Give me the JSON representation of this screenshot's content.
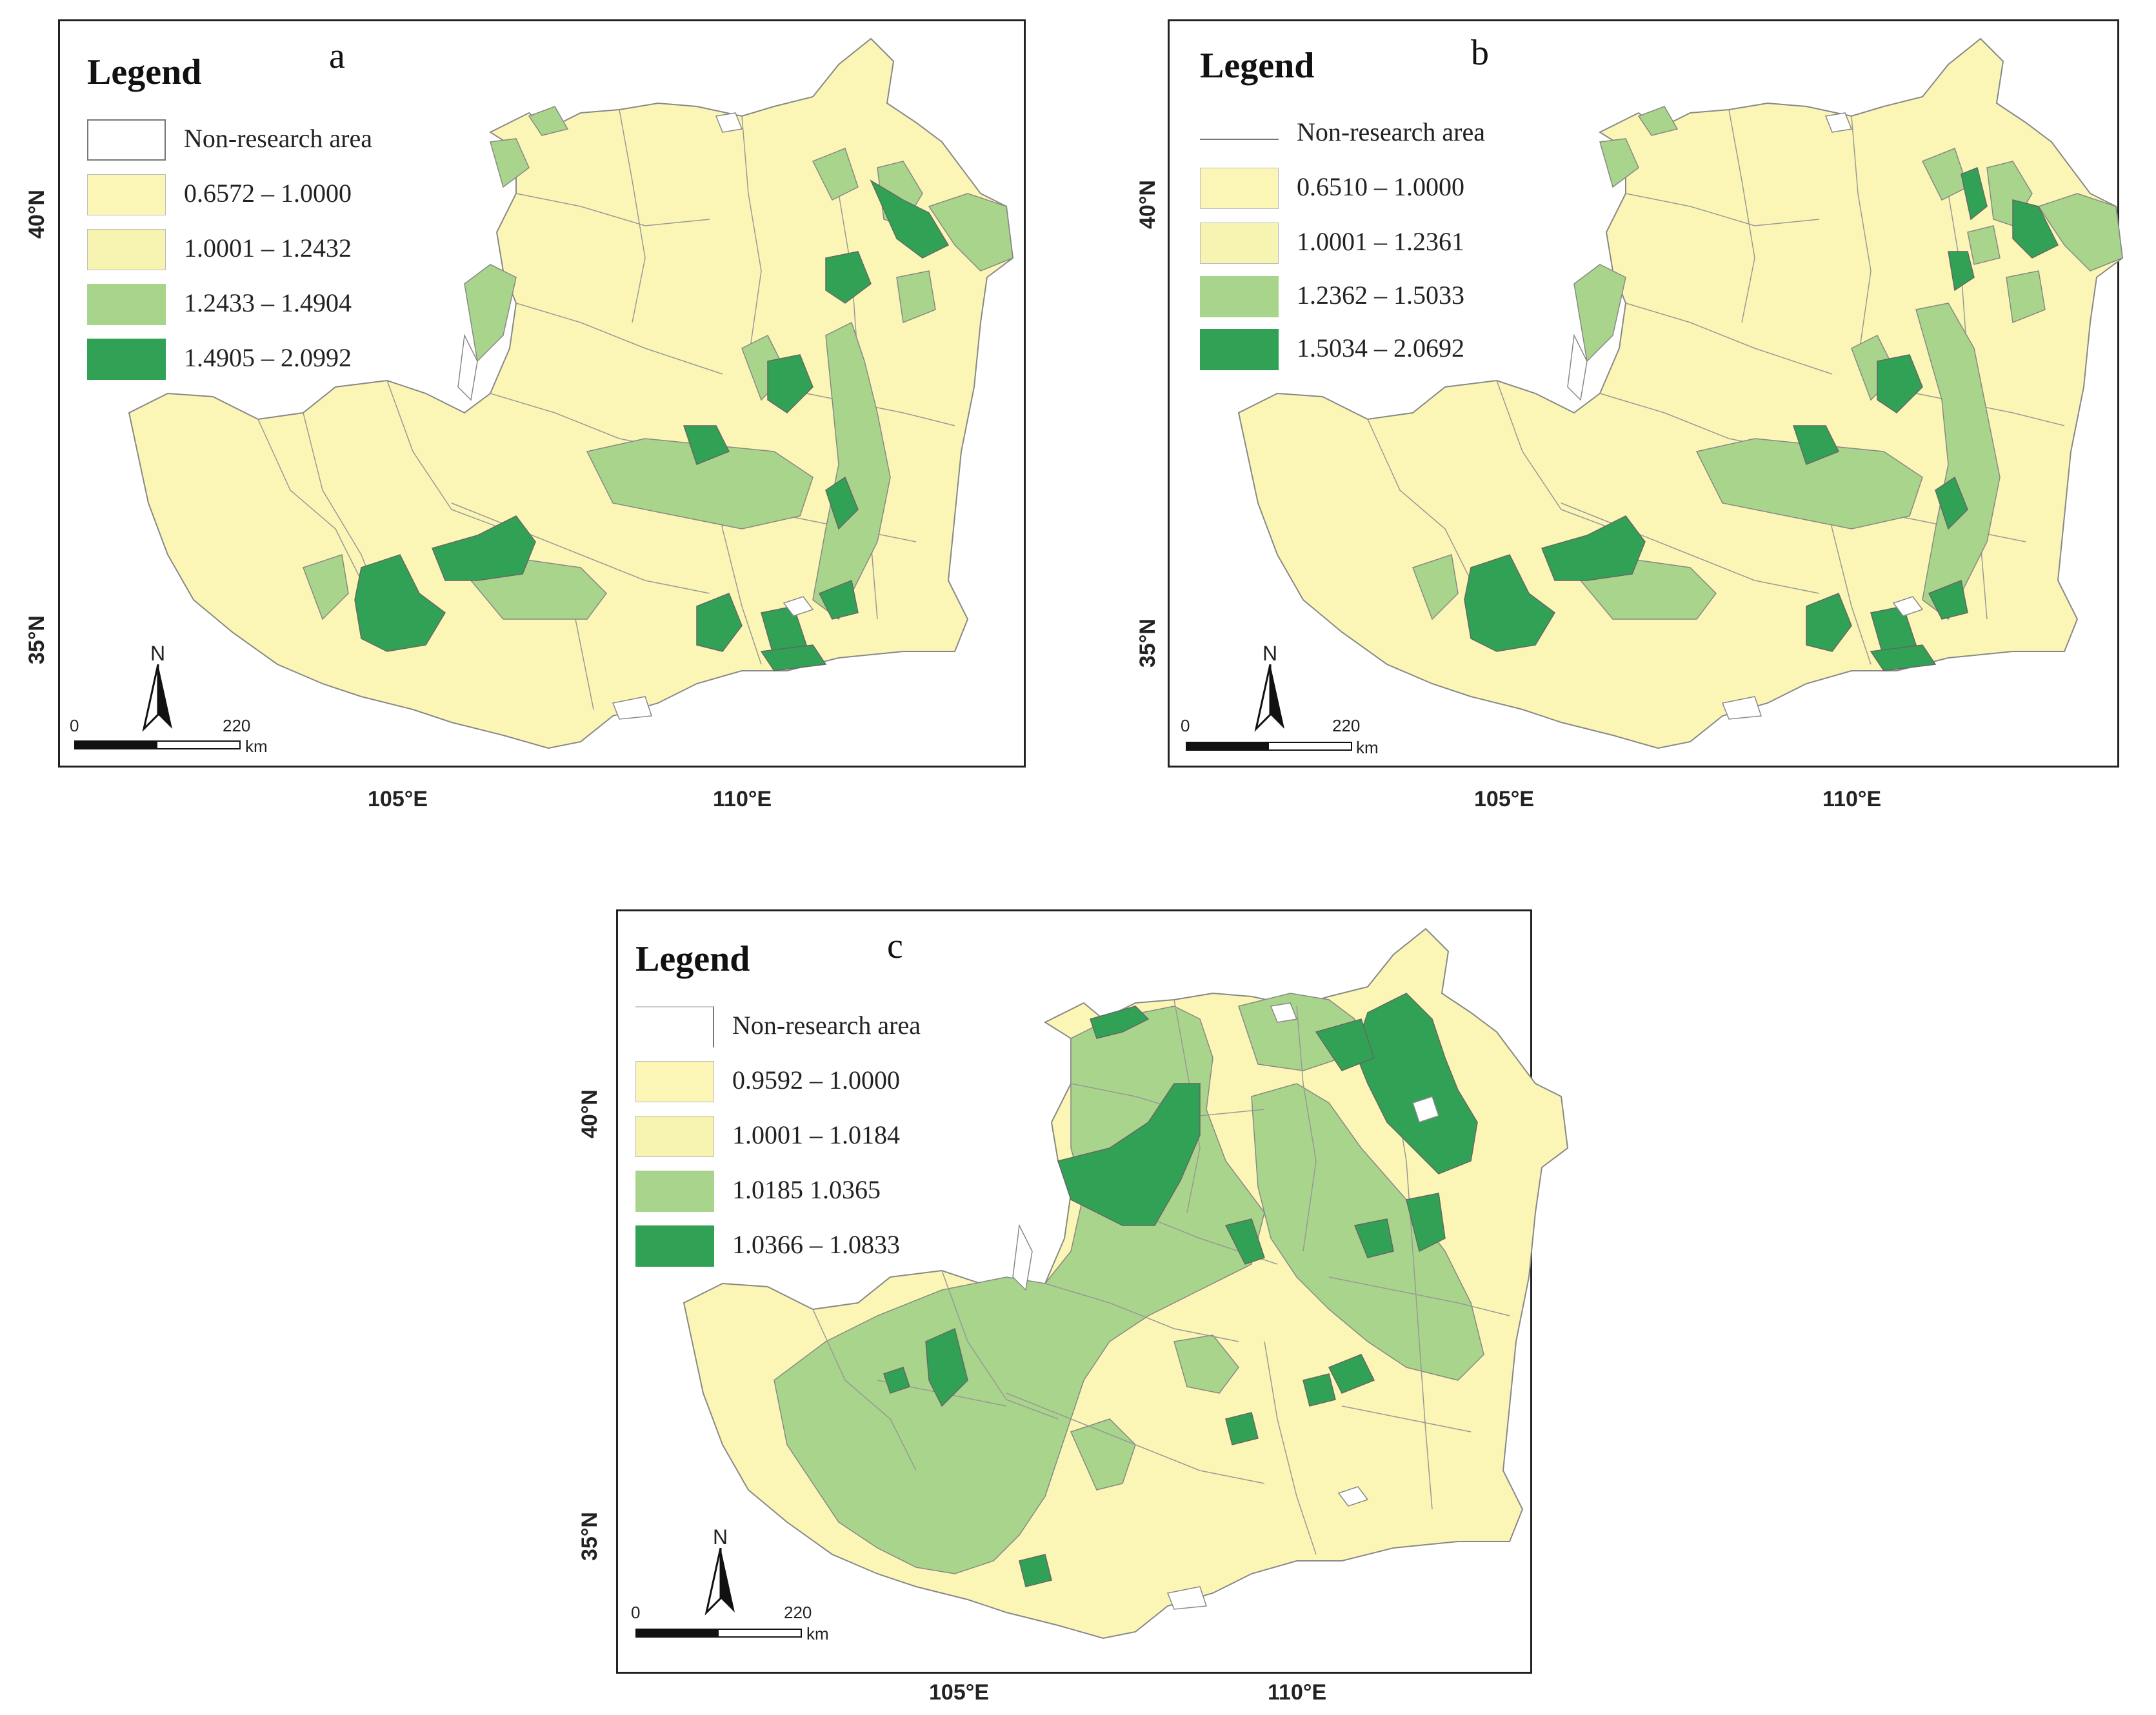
{
  "colors": {
    "non_research": "#ffffff",
    "class1": "#fbf6b5",
    "class2": "#f7f3b0",
    "class3": "#a9d48b",
    "class4": "#31a155",
    "boundary": "#888888",
    "frame": "#222222"
  },
  "common": {
    "legend_title": "Legend",
    "non_research_label": "Non-research area",
    "scale_zero": "0",
    "scale_end": "220",
    "scale_unit": "km",
    "north": "N",
    "lat_40": "40°N",
    "lat_35": "35°N",
    "lon_105": "105°E",
    "lon_110": "110°E"
  },
  "panels": [
    {
      "label": "a",
      "legend": [
        "0.6572 – 1.0000",
        "1.0001 – 1.2432",
        "1.2433 – 1.4904",
        "1.4905 – 2.0992"
      ]
    },
    {
      "label": "b",
      "legend": [
        "0.6510 – 1.0000",
        "1.0001 – 1.2361",
        "1.2362 – 1.5033",
        "1.5034 – 2.0692"
      ]
    },
    {
      "label": "c",
      "legend": [
        "0.9592 – 1.0000",
        "1.0001 – 1.0184",
        "1.0185   1.0365",
        "1.0366 – 1.0833"
      ]
    }
  ]
}
